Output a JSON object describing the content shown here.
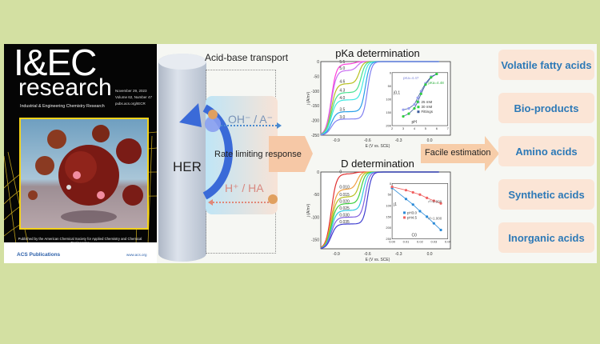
{
  "cover": {
    "title": "I&EC",
    "subtitle": "research",
    "journal": "Industrial & Engineering Chemistry Research",
    "date": "November 29, 2023",
    "volume": "Volume 62, Number 47",
    "url": "pubs.acs.org/IECR",
    "publisher_line": "Published by the American Chemical Society for Applied Chemistry and Chemical Engineering",
    "logo": "ACS Publications",
    "website": "www.acs.org",
    "accent": "#f3d21a"
  },
  "mechanism": {
    "title": "Acid-base transport",
    "electrode_label": "HER",
    "species_top": "OH⁻ / A⁻",
    "species_bottom": "H⁺ / HA",
    "arrow_label": "Rate limiting response"
  },
  "estimation_label": "Facile estimation",
  "applications": [
    "Volatile fatty acids",
    "Bio-products",
    "Amino acids",
    "Synthetic acids",
    "Inorganic acids"
  ],
  "colors": {
    "background": "#d3e0a2",
    "application_text": "#2c79b7",
    "application_box": "#fbe5d6",
    "arrow": "#f4b68a"
  },
  "chart_data": [
    {
      "type": "line",
      "title": "pKa determination",
      "xlabel": "E (V vs. SCE)",
      "ylabel": "j (A/m²)",
      "xlim": [
        -1.05,
        0.2
      ],
      "ylim": [
        -250,
        0
      ],
      "xticks": [
        "-0.9",
        "-0.6",
        "-0.3",
        "0.0"
      ],
      "yticks": [
        "0",
        "-50",
        "-100",
        "-150",
        "-200",
        "-250"
      ],
      "series": [
        {
          "name": "5.5",
          "plateau": -8,
          "color": "#ff3fd8"
        },
        {
          "name": "5.0",
          "plateau": -30,
          "color": "#c86cf0"
        },
        {
          "name": "4.6",
          "plateau": -75,
          "color": "#b8c020"
        },
        {
          "name": "4.3",
          "plateau": -105,
          "color": "#48e090"
        },
        {
          "name": "4.0",
          "plateau": -130,
          "color": "#40e8e0"
        },
        {
          "name": "3.5",
          "plateau": -170,
          "color": "#2aa0e8"
        },
        {
          "name": "3.0",
          "plateau": -195,
          "color": "#8080f0"
        }
      ],
      "inset": {
        "type": "scatter",
        "xlabel": "pH",
        "ylabel": "j0,1",
        "xlim": [
          2,
          7
        ],
        "ylim": [
          200,
          0
        ],
        "xticks": [
          "2",
          "3",
          "4",
          "5",
          "6",
          "7"
        ],
        "yticks": [
          "0",
          "50",
          "100",
          "150",
          "200"
        ],
        "annotations": [
          "pKa=4.47",
          "pKa=4.48"
        ],
        "series": [
          {
            "name": "25 mM",
            "color": "#9aa0f0",
            "x": [
              3.0,
              3.5,
              4.0,
              4.3,
              4.6,
              5.0,
              5.5,
              6.0
            ],
            "y": [
              140,
              135,
              120,
              95,
              70,
              40,
              15,
              5
            ]
          },
          {
            "name": "30 mM",
            "color": "#30d040",
            "x": [
              3.0,
              3.5,
              4.0,
              4.3,
              4.6,
              5.0,
              5.5,
              6.0
            ],
            "y": [
              165,
              155,
              135,
              110,
              80,
              45,
              18,
              5
            ]
          },
          {
            "name": "Fittings",
            "color": "#3a5a9a"
          }
        ]
      }
    },
    {
      "type": "line",
      "title": "D determination",
      "xlabel": "E (V vs. SCE)",
      "ylabel": "j (A/m²)",
      "xlim": [
        -1.05,
        0.2
      ],
      "ylim": [
        -170,
        0
      ],
      "xticks": [
        "-0.9",
        "-0.6",
        "-0.3",
        "0.0"
      ],
      "yticks": [
        "0",
        "-50",
        "-100",
        "-150"
      ],
      "series": [
        {
          "name": "0",
          "plateau": -4,
          "color": "#e03030"
        },
        {
          "name": "0.010",
          "plateau": -38,
          "color": "#f0a040"
        },
        {
          "name": "0.015",
          "plateau": -55,
          "color": "#b8c020"
        },
        {
          "name": "0.020",
          "plateau": -70,
          "color": "#40d040"
        },
        {
          "name": "0.025",
          "plateau": -85,
          "color": "#30c8e0"
        },
        {
          "name": "0.030",
          "plateau": -100,
          "color": "#8060e0"
        },
        {
          "name": "0.035",
          "plateau": -115,
          "color": "#4040d0"
        }
      ],
      "inset": {
        "type": "scatter",
        "xlabel": "C0",
        "ylabel": "j1",
        "xlim": [
          0,
          0.04
        ],
        "ylim": [
          250,
          0
        ],
        "xticks": [
          "0.00",
          "0.01",
          "0.02",
          "0.03",
          "0.04"
        ],
        "yticks": [
          "0",
          "50",
          "100",
          "150",
          "200",
          "250"
        ],
        "annotations": [
          "r²=0.999",
          "r²=1.000"
        ],
        "series": [
          {
            "name": "pH3.0",
            "color": "#2a8ad8",
            "x": [
              0,
              0.01,
              0.015,
              0.02,
              0.025,
              0.03,
              0.035
            ],
            "y": [
              20,
              70,
              95,
              125,
              150,
              180,
              210
            ]
          },
          {
            "name": "pH4.5",
            "color": "#f06060",
            "x": [
              0,
              0.01,
              0.015,
              0.02,
              0.025,
              0.03,
              0.035
            ],
            "y": [
              15,
              30,
              40,
              50,
              65,
              78,
              90
            ]
          }
        ]
      }
    }
  ]
}
